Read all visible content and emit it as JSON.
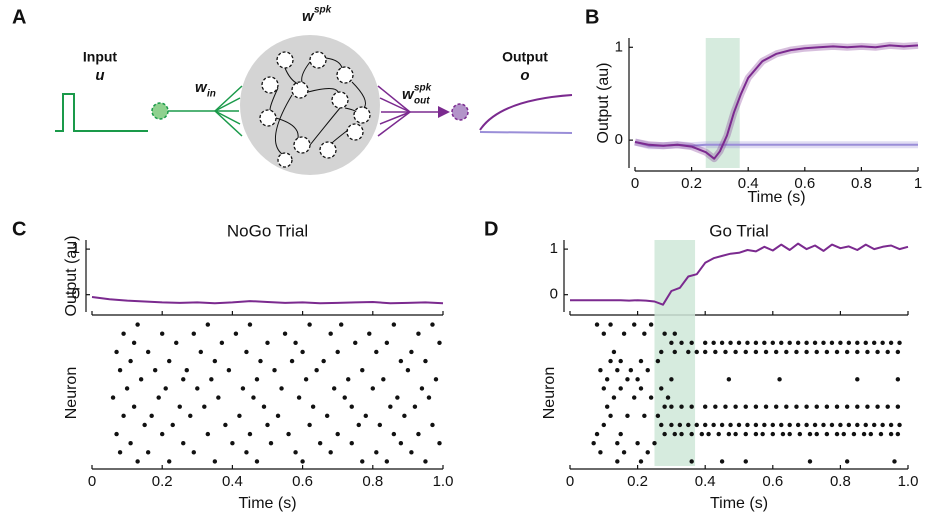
{
  "diagram": {
    "input_label": "Input",
    "input_symbol": "u",
    "w_in": {
      "base": "w",
      "sub": "in"
    },
    "w_spk": {
      "base": "w",
      "sup": "spk"
    },
    "w_out": {
      "base": "w",
      "sup": "spk",
      "sub": "out"
    },
    "output_label": "Output",
    "output_symbol": "o"
  },
  "panel_labels": [
    "A",
    "B",
    "C",
    "D"
  ],
  "chart_data": [
    {
      "type": "line",
      "xlabel": "Time (s)",
      "ylabel": "Output (au)",
      "xlim": [
        0,
        1
      ],
      "ylim": [
        -0.3,
        1.1
      ],
      "xticks": [
        0,
        0.2,
        0.4,
        0.6,
        0.8,
        1
      ],
      "yticks": [
        0,
        1
      ],
      "shaded_interval": [
        0.25,
        0.37
      ],
      "shade_color": "#cfe8d8",
      "x": [
        0,
        0.05,
        0.1,
        0.15,
        0.2,
        0.25,
        0.28,
        0.3,
        0.325,
        0.35,
        0.375,
        0.4,
        0.45,
        0.5,
        0.55,
        0.6,
        0.65,
        0.7,
        0.75,
        0.8,
        0.85,
        0.9,
        0.95,
        1
      ],
      "series": [
        {
          "color": "#9a8ed8",
          "values": [
            -0.02,
            -0.06,
            -0.06,
            -0.05,
            -0.06,
            -0.05,
            -0.05,
            -0.05,
            -0.05,
            -0.05,
            -0.05,
            -0.05,
            -0.05,
            -0.05,
            -0.05,
            -0.05,
            -0.05,
            -0.05,
            -0.05,
            -0.05,
            -0.05,
            -0.05,
            -0.05,
            -0.05
          ]
        },
        {
          "color": "#7b2a8f",
          "values": [
            -0.02,
            -0.05,
            -0.06,
            -0.05,
            -0.07,
            -0.13,
            -0.2,
            -0.12,
            0.05,
            0.3,
            0.5,
            0.67,
            0.85,
            0.93,
            0.97,
            0.99,
            1.0,
            1.01,
            1.0,
            1.01,
            1.0,
            1.02,
            1.01,
            1.02
          ]
        }
      ]
    },
    {
      "type": "line",
      "title": "NoGo Trial",
      "ylabel": "Output (au)",
      "xlim": [
        0,
        1
      ],
      "ylim": [
        -0.38,
        1.2
      ],
      "xticks": [
        0,
        0.2,
        0.4,
        0.6,
        0.8,
        {
          "value": 1,
          "label": "1.0"
        }
      ],
      "yticks": [
        0,
        1
      ],
      "x": [
        0,
        0.05,
        0.1,
        0.15,
        0.2,
        0.25,
        0.3,
        0.35,
        0.4,
        0.45,
        0.5,
        0.55,
        0.6,
        0.65,
        0.7,
        0.75,
        0.8,
        0.85,
        0.9,
        0.95,
        1
      ],
      "series": [
        {
          "color": "#7b2a8f",
          "values": [
            -0.05,
            -0.1,
            -0.13,
            -0.15,
            -0.17,
            -0.18,
            -0.17,
            -0.19,
            -0.17,
            -0.14,
            -0.16,
            -0.18,
            -0.17,
            -0.19,
            -0.18,
            -0.17,
            -0.16,
            -0.19,
            -0.18,
            -0.17,
            -0.19
          ]
        }
      ]
    },
    {
      "type": "raster",
      "xlabel": "Time (s)",
      "ylabel": "Neuron",
      "xlim": [
        0,
        1
      ],
      "xticks": [
        0,
        0.2,
        0.4,
        0.6,
        0.8,
        {
          "value": 1,
          "label": "1.0"
        }
      ],
      "neurons": [
        [
          0.13,
          0.33,
          0.45,
          0.62,
          0.71,
          0.86,
          0.97
        ],
        [
          0.09,
          0.2,
          0.29,
          0.41,
          0.55,
          0.68,
          0.79,
          0.93
        ],
        [
          0.12,
          0.24,
          0.37,
          0.5,
          0.58,
          0.75,
          0.84,
          0.99
        ],
        [
          0.07,
          0.16,
          0.31,
          0.44,
          0.6,
          0.7,
          0.81,
          0.91
        ],
        [
          0.11,
          0.22,
          0.35,
          0.48,
          0.57,
          0.66,
          0.88,
          0.95
        ],
        [
          0.08,
          0.18,
          0.27,
          0.39,
          0.52,
          0.64,
          0.77,
          0.9
        ],
        [
          0.14,
          0.26,
          0.34,
          0.47,
          0.61,
          0.73,
          0.83,
          0.98
        ],
        [
          0.1,
          0.21,
          0.3,
          0.43,
          0.54,
          0.69,
          0.8,
          0.94
        ],
        [
          0.06,
          0.19,
          0.36,
          0.46,
          0.59,
          0.72,
          0.87,
          0.96
        ],
        [
          0.12,
          0.25,
          0.32,
          0.49,
          0.63,
          0.74,
          0.85,
          0.92
        ],
        [
          0.09,
          0.17,
          0.28,
          0.42,
          0.53,
          0.67,
          0.78,
          0.89
        ],
        [
          0.15,
          0.23,
          0.38,
          0.5,
          0.62,
          0.76,
          0.82,
          0.97
        ],
        [
          0.07,
          0.2,
          0.33,
          0.45,
          0.56,
          0.7,
          0.86,
          0.93
        ],
        [
          0.11,
          0.26,
          0.4,
          0.51,
          0.65,
          0.74,
          0.88,
          0.99
        ],
        [
          0.08,
          0.16,
          0.29,
          0.44,
          0.58,
          0.68,
          0.81,
          0.91
        ],
        [
          0.13,
          0.22,
          0.35,
          0.47,
          0.6,
          0.77,
          0.84,
          0.95
        ]
      ]
    },
    {
      "type": "line",
      "title": "Go Trial",
      "xlim": [
        0,
        1
      ],
      "ylim": [
        -0.38,
        1.2
      ],
      "xticks": [
        0,
        0.2,
        0.4,
        0.6,
        0.8,
        {
          "value": 1,
          "label": "1.0"
        }
      ],
      "yticks": [
        0,
        1
      ],
      "shaded_interval": [
        0.25,
        0.37
      ],
      "shade_color": "#cfe8d8",
      "x": [
        0,
        0.025,
        0.05,
        0.075,
        0.1,
        0.125,
        0.15,
        0.175,
        0.2,
        0.225,
        0.25,
        0.275,
        0.3,
        0.325,
        0.35,
        0.375,
        0.4,
        0.425,
        0.45,
        0.475,
        0.5,
        0.525,
        0.55,
        0.575,
        0.6,
        0.625,
        0.65,
        0.675,
        0.7,
        0.725,
        0.75,
        0.775,
        0.8,
        0.825,
        0.85,
        0.875,
        0.9,
        0.925,
        0.95,
        0.975,
        1
      ],
      "series": [
        {
          "color": "#7b2a8f",
          "values": [
            -0.12,
            -0.12,
            -0.12,
            -0.12,
            -0.12,
            -0.12,
            -0.12,
            -0.13,
            -0.12,
            -0.13,
            -0.15,
            -0.22,
            0.08,
            0.15,
            0.4,
            0.45,
            0.7,
            0.8,
            0.85,
            0.9,
            0.92,
            0.98,
            0.95,
            1.05,
            0.97,
            1.1,
            0.98,
            1.12,
            1.0,
            1.08,
            0.96,
            1.1,
            1.02,
            1.06,
            0.98,
            1.1,
            1.0,
            1.05,
            1.08,
            1.0,
            1.05
          ]
        }
      ]
    },
    {
      "type": "raster",
      "xlabel": "Time (s)",
      "ylabel": "Neuron",
      "xlim": [
        0,
        1
      ],
      "xticks": [
        0,
        0.2,
        0.4,
        0.6,
        0.8,
        {
          "value": 1,
          "label": "1.0"
        }
      ],
      "shaded_interval": [
        0.25,
        0.37
      ],
      "shade_color": "#cfe8d8",
      "neurons": [
        [
          0.08,
          0.12,
          0.19,
          0.24
        ],
        [
          0.1,
          0.16,
          0.22,
          0.28,
          0.31
        ],
        [
          0.3,
          0.33,
          0.36,
          0.4,
          0.425,
          0.45,
          0.475,
          0.5,
          0.525,
          0.55,
          0.575,
          0.6,
          0.625,
          0.65,
          0.675,
          0.7,
          0.725,
          0.75,
          0.775,
          0.8,
          0.825,
          0.85,
          0.875,
          0.9,
          0.925,
          0.95,
          0.975
        ],
        [
          0.13,
          0.27,
          0.31,
          0.35,
          0.375,
          0.4,
          0.43,
          0.46,
          0.49,
          0.52,
          0.55,
          0.58,
          0.61,
          0.64,
          0.67,
          0.7,
          0.73,
          0.76,
          0.79,
          0.82,
          0.85,
          0.88,
          0.91,
          0.94,
          0.97
        ],
        [
          0.12,
          0.15,
          0.21,
          0.26
        ],
        [
          0.09,
          0.14,
          0.18,
          0.23
        ],
        [
          0.11,
          0.17,
          0.2,
          0.3,
          0.47,
          0.62,
          0.85,
          0.97
        ],
        [
          0.1,
          0.15,
          0.21,
          0.27
        ],
        [
          0.13,
          0.19,
          0.24,
          0.29
        ],
        [
          0.11,
          0.28,
          0.3,
          0.33,
          0.36,
          0.4,
          0.43,
          0.46,
          0.49,
          0.52,
          0.55,
          0.58,
          0.61,
          0.64,
          0.67,
          0.7,
          0.73,
          0.76,
          0.79,
          0.82,
          0.85,
          0.88,
          0.91,
          0.94,
          0.97
        ],
        [
          0.12,
          0.17,
          0.22,
          0.26
        ],
        [
          0.1,
          0.27,
          0.3,
          0.325,
          0.35,
          0.375,
          0.4,
          0.425,
          0.45,
          0.475,
          0.5,
          0.525,
          0.55,
          0.575,
          0.6,
          0.625,
          0.65,
          0.675,
          0.7,
          0.725,
          0.75,
          0.775,
          0.8,
          0.825,
          0.85,
          0.875,
          0.9,
          0.925,
          0.95,
          0.975
        ],
        [
          0.08,
          0.15,
          0.28,
          0.31,
          0.33,
          0.36,
          0.39,
          0.41,
          0.44,
          0.47,
          0.49,
          0.52,
          0.55,
          0.57,
          0.6,
          0.63,
          0.65,
          0.68,
          0.71,
          0.73,
          0.76,
          0.79,
          0.81,
          0.84,
          0.87,
          0.89,
          0.92,
          0.95,
          0.97
        ],
        [
          0.07,
          0.14,
          0.2,
          0.25
        ],
        [
          0.09,
          0.16,
          0.23
        ],
        [
          0.14,
          0.21,
          0.36,
          0.45,
          0.52,
          0.71,
          0.82,
          0.96
        ]
      ]
    }
  ]
}
